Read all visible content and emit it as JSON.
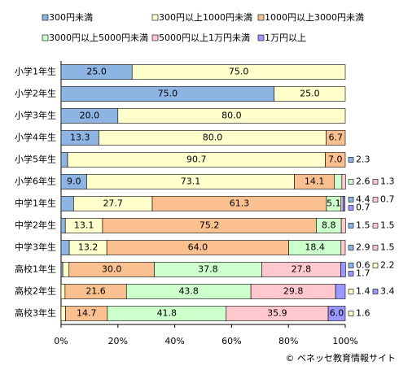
{
  "chart_data": {
    "type": "stacked-bar-horizontal",
    "categories": [
      "小学1年生",
      "小学2年生",
      "小学3年生",
      "小学4年生",
      "小学5年生",
      "小学6年生",
      "中学1年生",
      "中学2年生",
      "中学3年生",
      "高校1年生",
      "高校2年生",
      "高校3年生"
    ],
    "series": [
      {
        "name": "300円未満",
        "color": "#8eb4e3",
        "values": [
          25.0,
          75.0,
          20.0,
          13.3,
          2.3,
          9.0,
          4.4,
          1.5,
          2.9,
          0.6,
          null,
          null
        ],
        "value_labels": [
          "25.0",
          "75.0",
          "20.0",
          "13.3",
          "2.3",
          "9.0",
          "4.4",
          "1.5",
          "2.9",
          "0.6",
          null,
          null
        ]
      },
      {
        "name": "300円以上1000円未満",
        "color": "#ffffcc",
        "values": [
          75.0,
          25.0,
          80.0,
          80.0,
          90.7,
          73.1,
          27.7,
          13.1,
          13.2,
          2.2,
          1.4,
          1.6
        ],
        "value_labels": [
          "75.0",
          "25.0",
          "80.0",
          "80.0",
          "90.7",
          "73.1",
          "27.7",
          "13.1",
          "13.2",
          "2.2",
          "1.4",
          "1.6"
        ]
      },
      {
        "name": "1000円以上3000円未満",
        "color": "#fac08f",
        "values": [
          null,
          null,
          null,
          6.7,
          7.0,
          14.1,
          61.3,
          75.2,
          64.0,
          30.0,
          21.6,
          14.7
        ],
        "value_labels": [
          null,
          null,
          null,
          "6.7",
          "7.0",
          "14.1",
          "61.3",
          "75.2",
          "64.0",
          "30.0",
          "21.6",
          "14.7"
        ]
      },
      {
        "name": "3000円以上5000円未満",
        "color": "#ccffcc",
        "values": [
          null,
          null,
          null,
          null,
          null,
          2.6,
          5.1,
          8.8,
          18.4,
          37.8,
          43.8,
          41.8
        ],
        "value_labels": [
          null,
          null,
          null,
          null,
          null,
          "2.6",
          "5.1",
          "8.8",
          "18.4",
          "37.8",
          "43.8",
          "41.8"
        ]
      },
      {
        "name": "5000円以上1万円未満",
        "color": "#ffc7ce",
        "values": [
          null,
          null,
          null,
          null,
          null,
          1.3,
          0.7,
          1.5,
          1.5,
          27.8,
          29.8,
          35.9
        ],
        "value_labels": [
          null,
          null,
          null,
          null,
          null,
          "1.3",
          "0.7",
          "1.5",
          "1.5",
          "27.8",
          "29.8",
          "35.9"
        ]
      },
      {
        "name": "1万円以上",
        "color": "#9999ff",
        "values": [
          null,
          null,
          null,
          null,
          null,
          null,
          0.7,
          null,
          null,
          1.7,
          3.4,
          6.0
        ],
        "value_labels": [
          null,
          null,
          null,
          null,
          null,
          null,
          "0.7",
          null,
          null,
          "1.7",
          "3.4",
          "6.0"
        ]
      }
    ],
    "xlim": [
      0,
      100
    ],
    "xticks": [
      {
        "value": 0,
        "label": "0%"
      },
      {
        "value": 20,
        "label": "20%"
      },
      {
        "value": 40,
        "label": "40%"
      },
      {
        "value": 60,
        "label": "60%"
      },
      {
        "value": 80,
        "label": "80%"
      },
      {
        "value": 100,
        "label": "100%"
      }
    ],
    "source": "© ベネッセ教育情報サイト"
  }
}
